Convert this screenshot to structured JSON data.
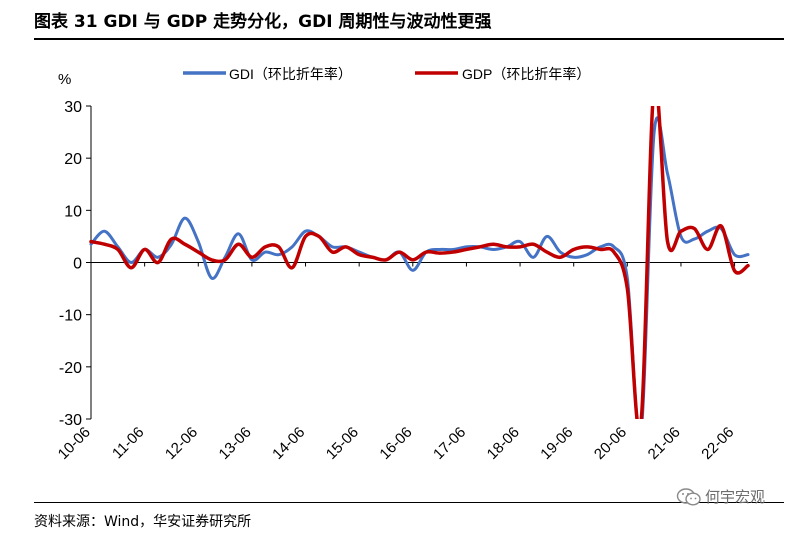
{
  "header": {
    "title": "图表 31 GDI 与 GDP 走势分化，GDI 周期性与波动性更强"
  },
  "footer": {
    "source": "资料来源：Wind，华安证券研究所",
    "watermark": "何宇宏观"
  },
  "colors": {
    "gdi": "#4472C4",
    "gdp": "#C00000",
    "axis": "#000000"
  },
  "chart_data": {
    "type": "line",
    "title": "",
    "xlabel": "",
    "ylabel": "%",
    "ylim": [
      -30,
      30
    ],
    "yticks": [
      "30",
      "20",
      "10",
      "0",
      "-10",
      "-20",
      "-30"
    ],
    "ytick_values": [
      30,
      20,
      10,
      0,
      -10,
      -20,
      -30
    ],
    "xtick_labels": [
      "10-06",
      "11-06",
      "12-06",
      "13-06",
      "14-06",
      "15-06",
      "16-06",
      "17-06",
      "18-06",
      "19-06",
      "20-06",
      "21-06",
      "22-06"
    ],
    "x_start": "2010Q2",
    "x_end": "2022Q2",
    "legend_position": "top",
    "series": [
      {
        "name": "GDI（环比折年率）",
        "color_key": "gdi",
        "values": [
          3.5,
          6.0,
          3.0,
          0.0,
          2.5,
          1.0,
          3.5,
          8.5,
          4.0,
          -3.0,
          1.0,
          5.5,
          0.5,
          2.0,
          1.5,
          3.0,
          6.0,
          5.0,
          3.0,
          3.0,
          2.0,
          1.0,
          0.5,
          2.0,
          -1.5,
          2.0,
          2.5,
          2.5,
          3.0,
          3.0,
          2.5,
          3.0,
          4.0,
          1.0,
          5.0,
          2.0,
          1.0,
          1.5,
          3.0,
          3.0,
          -3.0,
          -33.0,
          25.0,
          17.0,
          5.0,
          4.5,
          6.0,
          6.5,
          1.5,
          1.5
        ]
      },
      {
        "name": "GDP（环比折年率）",
        "color_key": "gdp",
        "values": [
          4.0,
          3.5,
          2.5,
          -1.0,
          2.5,
          0.0,
          4.5,
          3.5,
          2.0,
          0.5,
          0.5,
          3.5,
          1.0,
          3.0,
          3.0,
          -1.0,
          5.0,
          5.0,
          2.0,
          3.0,
          1.5,
          1.0,
          0.5,
          2.0,
          0.5,
          2.0,
          1.8,
          2.0,
          2.5,
          3.0,
          3.5,
          3.0,
          3.0,
          3.5,
          2.0,
          1.0,
          2.5,
          3.0,
          2.5,
          2.0,
          -5.0,
          -31.2,
          33.8,
          4.0,
          6.0,
          6.5,
          2.5,
          7.0,
          -1.6,
          -0.6
        ]
      }
    ]
  }
}
